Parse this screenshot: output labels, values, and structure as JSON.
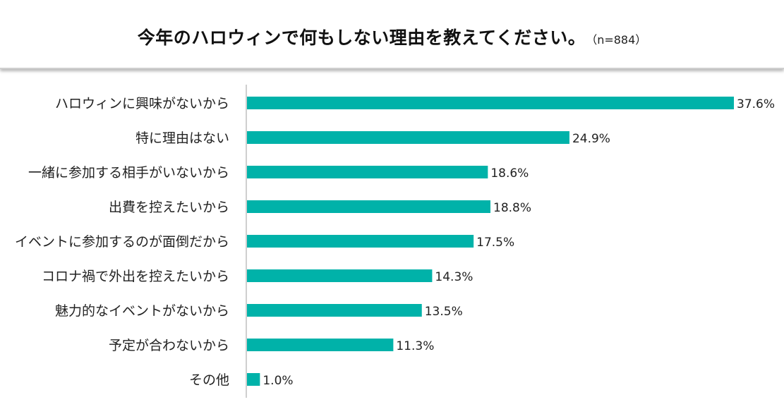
{
  "header": {
    "title": "今年のハロウィンで何もしない理由を教えてください。",
    "subtitle": "（n=884）"
  },
  "chart_data": {
    "type": "bar",
    "orientation": "horizontal",
    "categories": [
      "ハロウィンに興味がないから",
      "特に理由はない",
      "一緒に参加する相手がいないから",
      "出費を控えたいから",
      "イベントに参加するのが面倒だから",
      "コロナ禍で外出を控えたいから",
      "魅力的なイベントがないから",
      "予定が合わないから",
      "その他"
    ],
    "values": [
      37.6,
      24.9,
      18.6,
      18.8,
      17.5,
      14.3,
      13.5,
      11.3,
      1.0
    ],
    "value_labels": [
      "37.6%",
      "24.9%",
      "18.6%",
      "18.8%",
      "17.5%",
      "14.3%",
      "13.5%",
      "11.3%",
      "1.0%"
    ],
    "xlim": [
      0,
      37.6
    ],
    "bar_color": "#00b2a9",
    "axis_color": "#bfbfbf",
    "grid": false,
    "legend": "none"
  }
}
